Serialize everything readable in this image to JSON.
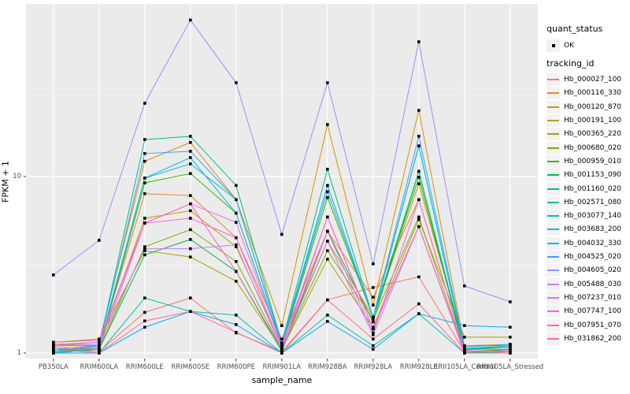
{
  "figure": {
    "panel_bg": "#EBEBEB",
    "grid_color": "#FFFFFF",
    "tick_color": "#333333",
    "axis_text_color": "#4D4D4D",
    "legend_key_bg": "#F2F2F2",
    "point_color": "#000000"
  },
  "legend": {
    "quant_status_title": "quant_status",
    "quant_status_items": [
      {
        "label": "OK",
        "symbol": "black-square-point"
      }
    ],
    "tracking_id_title": "tracking_id"
  },
  "chart_data": {
    "type": "line",
    "title": "",
    "xlabel": "sample_name",
    "ylabel": "FPKM + 1",
    "y_scale": "log10",
    "ylim": [
      0.93,
      95
    ],
    "grid": true,
    "legend_position": "right",
    "point_shape": "filled-square",
    "y_ticks": [
      {
        "value": 1,
        "label": "1"
      },
      {
        "value": 10,
        "label": "10"
      }
    ],
    "y_minor": [
      3.162,
      31.62
    ],
    "categories": [
      "PB350LA",
      "RRIM600LA",
      "RRIM600LE",
      "RRIM600SE",
      "RRIM600PE",
      "RRIM901LA",
      "RRIM928BA",
      "RRIM928LA",
      "RRIM928LE",
      "RRII105LA_Control",
      "RRII105LA_Stressed"
    ],
    "series": [
      {
        "name": "Hb_000027_100",
        "color": "#F8766D",
        "values": [
          1.05,
          1.02,
          1.7,
          2.05,
          1.3,
          1.02,
          2.0,
          2.35,
          2.7,
          1.02,
          1.0
        ]
      },
      {
        "name": "Hb_000116_330",
        "color": "#EA8331",
        "values": [
          1.1,
          1.1,
          8.0,
          7.8,
          4.5,
          1.2,
          4.9,
          2.07,
          7.4,
          1.05,
          1.05
        ]
      },
      {
        "name": "Hb_000120_870",
        "color": "#D89000",
        "values": [
          1.1,
          1.15,
          12.2,
          15.6,
          7.4,
          1.43,
          19.7,
          1.87,
          23.7,
          1.1,
          1.12
        ]
      },
      {
        "name": "Hb_000191_100",
        "color": "#C09B00",
        "values": [
          1.12,
          1.1,
          5.8,
          6.4,
          4.0,
          1.1,
          4.3,
          1.6,
          9.1,
          1.1,
          1.1
        ]
      },
      {
        "name": "Hb_000365_220",
        "color": "#A3A500",
        "values": [
          1.15,
          1.2,
          3.8,
          3.5,
          2.55,
          1.05,
          3.4,
          1.4,
          5.7,
          1.23,
          1.23
        ]
      },
      {
        "name": "Hb_000680_020",
        "color": "#7CAE00",
        "values": [
          1.05,
          1.05,
          4.0,
          5.0,
          3.3,
          1.05,
          3.8,
          1.55,
          5.9,
          1.02,
          1.05
        ]
      },
      {
        "name": "Hb_000959_010",
        "color": "#39B600",
        "values": [
          1.02,
          1.05,
          9.2,
          10.4,
          6.2,
          1.1,
          7.6,
          1.6,
          9.9,
          1.05,
          1.08
        ]
      },
      {
        "name": "Hb_001153_090",
        "color": "#00BB4E",
        "values": [
          1.0,
          1.05,
          3.6,
          4.4,
          2.9,
          1.02,
          4.9,
          1.5,
          10.7,
          1.0,
          1.05
        ]
      },
      {
        "name": "Hb_001160_020",
        "color": "#00BF7D",
        "values": [
          1.02,
          1.1,
          16.2,
          16.9,
          8.9,
          1.14,
          11.0,
          1.59,
          10.7,
          1.05,
          1.1
        ]
      },
      {
        "name": "Hb_002571_080",
        "color": "#00C1A3",
        "values": [
          1.0,
          1.0,
          2.05,
          1.72,
          1.64,
          1.0,
          1.64,
          1.1,
          1.67,
          1.0,
          1.02
        ]
      },
      {
        "name": "Hb_003077_140",
        "color": "#00BFC4",
        "values": [
          1.02,
          1.08,
          9.8,
          11.8,
          7.4,
          1.12,
          8.2,
          1.59,
          14.9,
          1.06,
          1.1
        ]
      },
      {
        "name": "Hb_003683_200",
        "color": "#00BAE0",
        "values": [
          1.0,
          1.06,
          9.8,
          12.8,
          6.2,
          1.1,
          8.9,
          1.59,
          14.9,
          1.04,
          1.08
        ]
      },
      {
        "name": "Hb_004032_330",
        "color": "#00B0F6",
        "values": [
          1.0,
          1.0,
          1.4,
          1.72,
          1.45,
          1.0,
          1.51,
          1.05,
          1.67,
          1.43,
          1.4
        ]
      },
      {
        "name": "Hb_004525_020",
        "color": "#35A2FF",
        "values": [
          1.05,
          1.1,
          13.5,
          13.9,
          7.4,
          1.14,
          8.9,
          1.59,
          16.9,
          1.08,
          1.12
        ]
      },
      {
        "name": "Hb_004605_020",
        "color": "#9590FF",
        "values": [
          2.77,
          4.35,
          26.0,
          77.0,
          34.0,
          4.7,
          34.0,
          3.2,
          58.0,
          2.4,
          1.95
        ]
      },
      {
        "name": "Hb_005488_030",
        "color": "#C77CFF",
        "values": [
          1.1,
          1.12,
          3.9,
          3.9,
          4.1,
          1.05,
          4.3,
          1.27,
          5.2,
          1.0,
          1.0
        ]
      },
      {
        "name": "Hb_007237_010",
        "color": "#E76BF3",
        "values": [
          1.12,
          1.15,
          5.45,
          7.0,
          5.5,
          1.1,
          5.9,
          1.37,
          5.2,
          1.02,
          1.03
        ]
      },
      {
        "name": "Hb_007747_100",
        "color": "#FA62DB",
        "values": [
          1.15,
          1.18,
          5.45,
          5.8,
          4.5,
          1.08,
          4.9,
          1.3,
          7.4,
          1.03,
          1.02
        ]
      },
      {
        "name": "Hb_007951_070",
        "color": "#FF62BC",
        "values": [
          1.08,
          1.05,
          5.45,
          7.0,
          2.9,
          1.05,
          5.9,
          1.37,
          5.2,
          1.0,
          1.0
        ]
      },
      {
        "name": "Hb_031862_200",
        "color": "#FF6A98",
        "values": [
          1.05,
          1.0,
          1.52,
          1.72,
          1.31,
          1.0,
          2.0,
          1.2,
          1.9,
          1.0,
          1.0
        ]
      }
    ]
  }
}
